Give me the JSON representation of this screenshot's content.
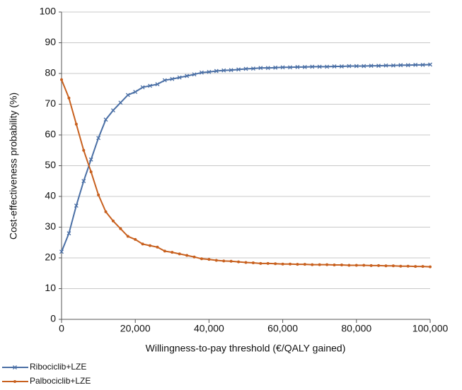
{
  "chart_data": {
    "type": "line",
    "y_label": "Cost-effectiveness probability (%)",
    "x_label": "Willingness-to-pay threshold (€/QALY gained)",
    "x": [
      0,
      2000,
      4000,
      6000,
      8000,
      10000,
      12000,
      14000,
      16000,
      18000,
      20000,
      22000,
      24000,
      26000,
      28000,
      30000,
      32000,
      34000,
      36000,
      38000,
      40000,
      42000,
      44000,
      46000,
      48000,
      50000,
      52000,
      54000,
      56000,
      58000,
      60000,
      62000,
      64000,
      66000,
      68000,
      70000,
      72000,
      74000,
      76000,
      78000,
      80000,
      82000,
      84000,
      86000,
      88000,
      90000,
      92000,
      94000,
      96000,
      98000,
      100000
    ],
    "series": [
      {
        "name": "Ribociclib+LZE",
        "color": "#4a6fa5",
        "marker": "x",
        "values": [
          22,
          28,
          37,
          45,
          52,
          59,
          65,
          68,
          70.5,
          73,
          74,
          75.5,
          76,
          76.5,
          77.8,
          78.2,
          78.7,
          79.2,
          79.7,
          80.3,
          80.5,
          80.8,
          81,
          81.1,
          81.3,
          81.5,
          81.6,
          81.8,
          81.8,
          81.9,
          82,
          82,
          82.1,
          82.1,
          82.2,
          82.2,
          82.2,
          82.3,
          82.3,
          82.4,
          82.4,
          82.4,
          82.5,
          82.5,
          82.6,
          82.6,
          82.7,
          82.7,
          82.8,
          82.8,
          82.9
        ]
      },
      {
        "name": "Palbociclib+LZE",
        "color": "#c8601e",
        "marker": "dot",
        "values": [
          78,
          72,
          63.5,
          55,
          48,
          40.5,
          35,
          32,
          29.5,
          27,
          26,
          24.5,
          24,
          23.5,
          22.2,
          21.8,
          21.3,
          20.8,
          20.3,
          19.7,
          19.5,
          19.2,
          19,
          18.9,
          18.7,
          18.5,
          18.4,
          18.2,
          18.2,
          18.1,
          18,
          18,
          17.9,
          17.9,
          17.8,
          17.8,
          17.8,
          17.7,
          17.7,
          17.6,
          17.6,
          17.6,
          17.5,
          17.5,
          17.4,
          17.4,
          17.3,
          17.3,
          17.2,
          17.2,
          17.1
        ]
      }
    ],
    "xlim": [
      0,
      100000
    ],
    "xticks": [
      0,
      {
        "value": 20000,
        "label": "20,000"
      },
      {
        "value": 40000,
        "label": "40,000"
      },
      {
        "value": 60000,
        "label": "60,000"
      },
      {
        "value": 80000,
        "label": "80,000"
      },
      {
        "value": 100000,
        "label": "100,000"
      }
    ],
    "ylim": [
      0,
      100
    ],
    "yticks": [
      0,
      10,
      20,
      30,
      40,
      50,
      60,
      70,
      80,
      90,
      100
    ],
    "grid": true,
    "legend": "bottom-left"
  }
}
